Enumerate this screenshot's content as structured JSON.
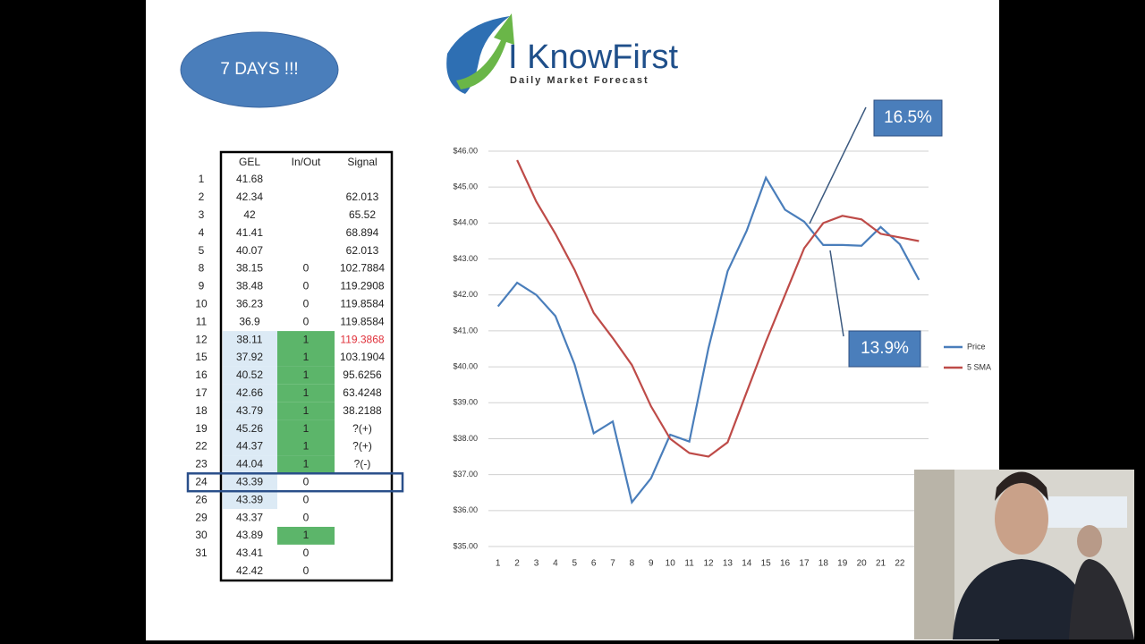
{
  "badge": "7 DAYS !!!",
  "logo": {
    "name": "I KnowFirst",
    "tagline": "Daily Market Forecast"
  },
  "table": {
    "headers": [
      "GEL",
      "In/Out",
      "Signal"
    ],
    "rows": [
      [
        "1",
        "41.68",
        null,
        null
      ],
      [
        "2",
        "42.34",
        null,
        "62.013"
      ],
      [
        "3",
        "42",
        null,
        "65.52"
      ],
      [
        "4",
        "41.41",
        null,
        "68.894"
      ],
      [
        "5",
        "40.07",
        null,
        "62.013"
      ],
      [
        "8",
        "38.15",
        "0",
        "102.7884"
      ],
      [
        "9",
        "38.48",
        "0",
        "119.2908"
      ],
      [
        "10",
        "36.23",
        "0",
        "119.8584"
      ],
      [
        "11",
        "36.9",
        "0",
        "119.8584"
      ],
      [
        "12",
        "38.11",
        "1",
        "119.3868"
      ],
      [
        "15",
        "37.92",
        "1",
        "103.1904"
      ],
      [
        "16",
        "40.52",
        "1",
        "95.6256"
      ],
      [
        "17",
        "42.66",
        "1",
        "63.4248"
      ],
      [
        "18",
        "43.79",
        "1",
        "38.2188"
      ],
      [
        "19",
        "45.26",
        "1",
        "?(+)"
      ],
      [
        "22",
        "44.37",
        "1",
        "?(+)"
      ],
      [
        "23",
        "44.04",
        "1",
        "?(-)"
      ],
      [
        "24",
        "43.39",
        "0",
        null
      ],
      [
        "26",
        "43.39",
        "0",
        null
      ],
      [
        "29",
        "43.37",
        "0",
        null
      ],
      [
        "30",
        "43.89",
        "1",
        null
      ],
      [
        "31",
        "43.41",
        "0",
        null
      ],
      [
        null,
        "42.42",
        "0",
        null
      ]
    ]
  },
  "chart_data": {
    "type": "line",
    "x": [
      1,
      2,
      3,
      4,
      5,
      6,
      7,
      8,
      9,
      10,
      11,
      12,
      13,
      14,
      15,
      16,
      17,
      18,
      19,
      20,
      21,
      22,
      23
    ],
    "xlim": [
      0.5,
      23.5
    ],
    "ylim": [
      35,
      46
    ],
    "yticks": [
      {
        "value": 35,
        "label": "$35.00"
      },
      {
        "value": 36,
        "label": "$36.00"
      },
      {
        "value": 37,
        "label": "$37.00"
      },
      {
        "value": 38,
        "label": "$38.00"
      },
      {
        "value": 39,
        "label": "$39.00"
      },
      {
        "value": 40,
        "label": "$40.00"
      },
      {
        "value": 41,
        "label": "$41.00"
      },
      {
        "value": 42,
        "label": "$42.00"
      },
      {
        "value": 43,
        "label": "$43.00"
      },
      {
        "value": 44,
        "label": "$44.00"
      },
      {
        "value": 45,
        "label": "$45.00"
      },
      {
        "value": 46,
        "label": "$46.00"
      }
    ],
    "grid": true,
    "legend": "right",
    "series": [
      {
        "name": "Price",
        "color": "#4a7ebb",
        "values": [
          41.68,
          42.34,
          42,
          41.41,
          40.07,
          38.15,
          38.48,
          36.23,
          36.9,
          38.11,
          37.92,
          40.52,
          42.66,
          43.79,
          45.26,
          44.37,
          44.04,
          43.39,
          43.39,
          43.37,
          43.89,
          43.41,
          42.42
        ]
      },
      {
        "name": "5 SMA",
        "color": "#be4b48",
        "values": [
          null,
          45.75,
          44.6,
          43.7,
          42.7,
          41.5,
          40.8,
          40.05,
          38.9,
          38.0,
          37.6,
          37.5,
          37.9,
          39.3,
          40.7,
          42.0,
          43.3,
          44.0,
          44.2,
          44.1,
          43.7,
          43.6,
          43.5
        ]
      }
    ],
    "annotations": [
      "16.5%",
      "13.9%"
    ]
  }
}
